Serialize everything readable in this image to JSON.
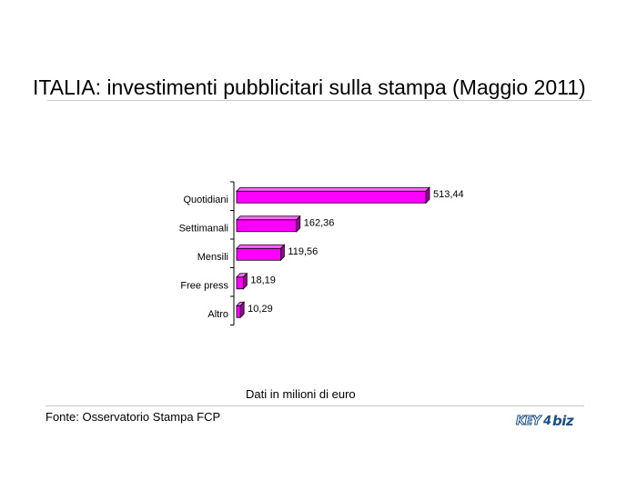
{
  "header": {
    "title": "ITALIA: investimenti pubblicitari sulla stampa (Maggio 2011)"
  },
  "chart_data": {
    "type": "bar",
    "orientation": "horizontal",
    "categories": [
      "Quotidiani",
      "Settimanali",
      "Mensili",
      "Free press",
      "Altro"
    ],
    "values": [
      513.44,
      162.36,
      119.56,
      18.19,
      10.29
    ],
    "value_labels": [
      "513,44",
      "162,36",
      "119,56",
      "18,19",
      "10,29"
    ],
    "xlim": [
      0,
      513.44
    ],
    "grid": false,
    "legend": "none",
    "colors": {
      "bar": "#ff00ff",
      "bar_top": "#ff66ff",
      "bar_side": "#9a009a"
    }
  },
  "footer": {
    "note": "Dati in milioni di euro",
    "source": "Fonte: Osservatorio Stampa FCP",
    "logo_text": "KEY4biz"
  }
}
